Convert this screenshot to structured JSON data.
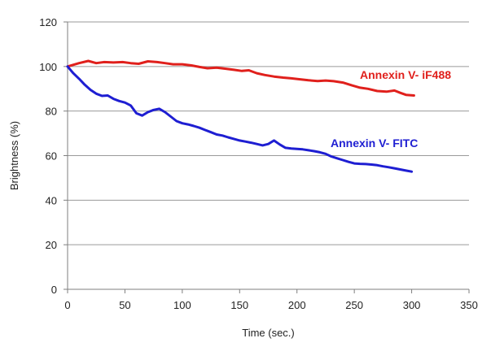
{
  "chart_data": {
    "type": "line",
    "title": "",
    "xlabel": "Time (sec.)",
    "ylabel": "Brightness (%)",
    "xlim": [
      0,
      350
    ],
    "ylim": [
      0,
      120
    ],
    "xticks": [
      0,
      50,
      100,
      150,
      200,
      250,
      300,
      350
    ],
    "yticks": [
      0,
      20,
      40,
      60,
      80,
      100,
      120
    ],
    "grid": "horizontal",
    "legend": "none",
    "series": [
      {
        "name": "Annexin V- iF488",
        "color": "#e0201c",
        "x": [
          0,
          10,
          18,
          25,
          32,
          40,
          48,
          55,
          62,
          70,
          78,
          85,
          92,
          100,
          108,
          115,
          122,
          130,
          138,
          145,
          152,
          158,
          165,
          172,
          180,
          188,
          195,
          202,
          210,
          218,
          225,
          232,
          240,
          248,
          255,
          262,
          270,
          278,
          285,
          290,
          295,
          302
        ],
        "y": [
          100,
          101.5,
          102.5,
          101.5,
          102,
          101.8,
          102,
          101.5,
          101.2,
          102.3,
          102,
          101.5,
          101,
          101,
          100.5,
          99.8,
          99.2,
          99.5,
          99,
          98.5,
          98,
          98.3,
          97,
          96.2,
          95.5,
          95,
          94.7,
          94.3,
          93.8,
          93.5,
          93.7,
          93.4,
          92.8,
          91.5,
          90.5,
          90,
          89,
          88.7,
          89.2,
          88.2,
          87.3,
          87
        ]
      },
      {
        "name": "Annexin V- FITC",
        "color": "#1e1ed2",
        "x": [
          0,
          5,
          10,
          15,
          20,
          25,
          30,
          35,
          40,
          45,
          50,
          55,
          60,
          65,
          70,
          75,
          80,
          85,
          90,
          95,
          100,
          105,
          110,
          115,
          120,
          125,
          130,
          135,
          140,
          145,
          150,
          155,
          160,
          165,
          170,
          175,
          180,
          185,
          190,
          195,
          200,
          205,
          210,
          215,
          220,
          225,
          230,
          235,
          240,
          245,
          250,
          255,
          260,
          265,
          270,
          275,
          280,
          285,
          290,
          295,
          300
        ],
        "y": [
          100,
          97,
          94.5,
          91.8,
          89.5,
          87.8,
          86.8,
          87,
          85.5,
          84.5,
          83.8,
          82.5,
          79,
          78,
          79.5,
          80.5,
          81,
          79.5,
          77.5,
          75.5,
          74.5,
          74,
          73.3,
          72.5,
          71.5,
          70.5,
          69.5,
          69,
          68.2,
          67.5,
          66.8,
          66.3,
          65.8,
          65.2,
          64.6,
          65.2,
          66.8,
          65,
          63.5,
          63.2,
          63,
          62.8,
          62.4,
          62,
          61.5,
          60.8,
          59.6,
          58.8,
          58,
          57.2,
          56.5,
          56.3,
          56.2,
          56,
          55.7,
          55.2,
          54.8,
          54.3,
          53.8,
          53.3,
          52.8
        ]
      }
    ]
  }
}
